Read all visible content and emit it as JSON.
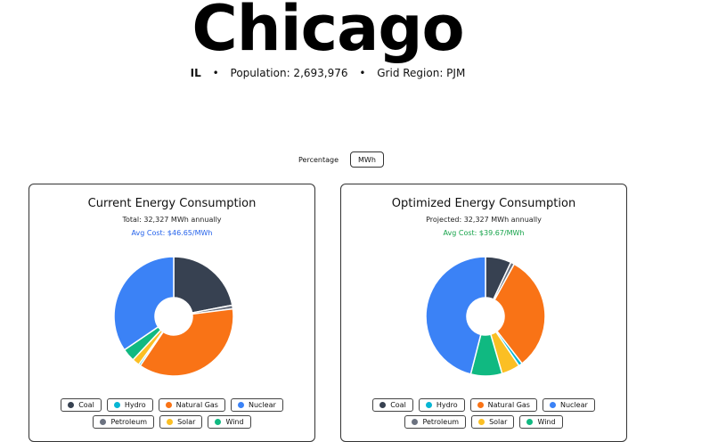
{
  "city": {
    "name": "Chicago",
    "state": "IL",
    "population": "Population: 2,693,976",
    "grid_region": "Grid Region: PJM",
    "separator": "•"
  },
  "toggle": {
    "percentage_label": "Percentage",
    "mwh_label": "MWh",
    "active": "MWh"
  },
  "legend_items": [
    {
      "label": "Coal",
      "color": "#374151"
    },
    {
      "label": "Hydro",
      "color": "#06b6d4"
    },
    {
      "label": "Natural Gas",
      "color": "#f97316"
    },
    {
      "label": "Nuclear",
      "color": "#3b82f6"
    },
    {
      "label": "Petroleum",
      "color": "#6b7280"
    },
    {
      "label": "Solar",
      "color": "#fbbf24"
    },
    {
      "label": "Wind",
      "color": "#10b981"
    }
  ],
  "current": {
    "title": "Current Energy Consumption",
    "total": "Total: 32,327 MWh annually",
    "avg_cost": "Avg Cost: $46.65/MWh"
  },
  "optimized": {
    "title": "Optimized Energy Consumption",
    "total": "Projected: 32,327 MWh annually",
    "avg_cost": "Avg Cost: $39.67/MWh"
  },
  "chart_data": [
    {
      "type": "pie",
      "title": "Current Energy Consumption",
      "unit": "%",
      "series": [
        {
          "name": "Coal",
          "value": 22.0,
          "color": "#374151"
        },
        {
          "name": "Petroleum",
          "value": 1.0,
          "color": "#6b7280"
        },
        {
          "name": "Natural Gas",
          "value": 36.5,
          "color": "#f97316"
        },
        {
          "name": "Hydro",
          "value": 0.5,
          "color": "#06b6d4"
        },
        {
          "name": "Solar",
          "value": 2.0,
          "color": "#fbbf24"
        },
        {
          "name": "Wind",
          "value": 3.5,
          "color": "#10b981"
        },
        {
          "name": "Nuclear",
          "value": 34.5,
          "color": "#3b82f6"
        }
      ]
    },
    {
      "type": "pie",
      "title": "Optimized Energy Consumption",
      "unit": "%",
      "series": [
        {
          "name": "Coal",
          "value": 7.0,
          "color": "#374151"
        },
        {
          "name": "Petroleum",
          "value": 1.0,
          "color": "#6b7280"
        },
        {
          "name": "Natural Gas",
          "value": 31.5,
          "color": "#f97316"
        },
        {
          "name": "Hydro",
          "value": 1.0,
          "color": "#06b6d4"
        },
        {
          "name": "Solar",
          "value": 5.0,
          "color": "#fbbf24"
        },
        {
          "name": "Wind",
          "value": 8.5,
          "color": "#10b981"
        },
        {
          "name": "Nuclear",
          "value": 46.0,
          "color": "#3b82f6"
        }
      ]
    }
  ]
}
